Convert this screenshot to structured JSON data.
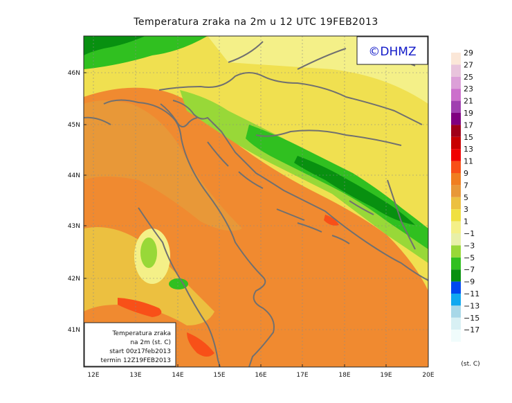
{
  "title": "Temperatura zraka na 2m u 12 UTC 19FEB2013",
  "logo": "©DHMZ",
  "info_box": {
    "line1": "Temperatura zraka",
    "line2": "na 2m (st. C)",
    "line3": "start 00z17feb2013",
    "line4": "termin 12Z19FEB2013"
  },
  "axes": {
    "lon_ticks": [
      "12E",
      "13E",
      "14E",
      "15E",
      "16E",
      "17E",
      "18E",
      "19E",
      "20E"
    ],
    "lat_ticks": [
      "46N",
      "45N",
      "44N",
      "43N",
      "42N",
      "41N"
    ]
  },
  "legend": {
    "unit": "(st. C)",
    "labels": [
      "29",
      "27",
      "25",
      "23",
      "21",
      "19",
      "17",
      "15",
      "13",
      "11",
      "9",
      "7",
      "5",
      "3",
      "1",
      "−1",
      "−3",
      "−5",
      "−7",
      "−9",
      "−11",
      "−13",
      "−15",
      "−17"
    ],
    "colors": [
      "#fbe7d8",
      "#e8c4dc",
      "#dca0d8",
      "#cc70cc",
      "#a040b0",
      "#800080",
      "#a00018",
      "#c80000",
      "#f00000",
      "#f85018",
      "#f07e20",
      "#e89838",
      "#ecc040",
      "#f0e040",
      "#f4f088",
      "#e8f0a8",
      "#98d838",
      "#30c020",
      "#089010",
      "#0048f0",
      "#10a8f0",
      "#a8d8e8",
      "#d8f0f4",
      "#f0fcfc"
    ]
  },
  "colors": {
    "sea_warm": "#f08a30",
    "land_yellow": "#f0e050",
    "mountain_green": "#30c020",
    "coast": "#707070"
  }
}
